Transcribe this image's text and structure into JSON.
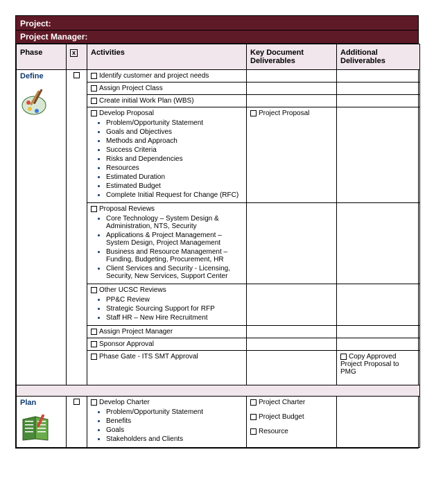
{
  "header": {
    "project_label": "Project:",
    "pm_label": "Project Manager:"
  },
  "columns": {
    "phase": "Phase",
    "chk_symbol": "x",
    "activities": "Activities",
    "key": "Key Document Deliverables",
    "additional": "Additional Deliverables"
  },
  "colors": {
    "header_bg": "#5f1a27",
    "header_text": "#ffffff",
    "thead_bg": "#f1e6eb",
    "phase_text": "#0f3a6f",
    "bullet_color": "#0f3a6f"
  },
  "phases": [
    {
      "name": "Define",
      "icon": "palette",
      "rows": [
        {
          "activity": "Identify customer and project needs",
          "bullets": [],
          "key": [],
          "add": []
        },
        {
          "activity": "Assign Project Class",
          "bullets": [],
          "key": [],
          "add": []
        },
        {
          "activity": "Create initial  Work Plan (WBS)",
          "bullets": [],
          "key": [],
          "add": []
        },
        {
          "activity": "Develop Proposal",
          "bullets": [
            "Problem/Opportunity Statement",
            "Goals and Objectives",
            "Methods and Approach",
            "Success Criteria",
            "Risks and Dependencies",
            "Resources",
            "Estimated Duration",
            "Estimated Budget",
            "Complete Initial Request for Change (RFC)"
          ],
          "key": [
            "Project Proposal"
          ],
          "add": []
        },
        {
          "activity": "Proposal Reviews",
          "bullets": [
            "Core Technology – System Design & Administration, NTS, Security",
            "Applications & Project Management – System Design, Project Management",
            "Business and Resource Management – Funding, Budgeting, Procurement, HR",
            "Client Services and Security - Licensing, Security, New Services, Support Center"
          ],
          "key": [],
          "add": []
        },
        {
          "activity": "Other UCSC Reviews",
          "bullets": [
            "PP&C Review",
            "Strategic Sourcing Support for RFP",
            "Staff HR – New Hire Recruitment"
          ],
          "key": [],
          "add": []
        },
        {
          "activity": "Assign Project Manager",
          "bullets": [],
          "key": [],
          "add": []
        },
        {
          "activity": "Sponsor Approval",
          "bullets": [],
          "key": [],
          "add": []
        },
        {
          "activity": "Phase Gate - ITS SMT Approval",
          "bullets": [],
          "key": [],
          "add": [
            "Copy Approved Project Proposal to PMG"
          ]
        }
      ]
    },
    {
      "name": "Plan",
      "icon": "planner",
      "rows": [
        {
          "activity": "Develop Charter",
          "bullets": [
            "Problem/Opportunity Statement",
            "Benefits",
            "Goals",
            "Stakeholders and Clients"
          ],
          "key": [
            "Project Charter",
            "Project Budget",
            "Resource"
          ],
          "add": []
        }
      ]
    }
  ]
}
